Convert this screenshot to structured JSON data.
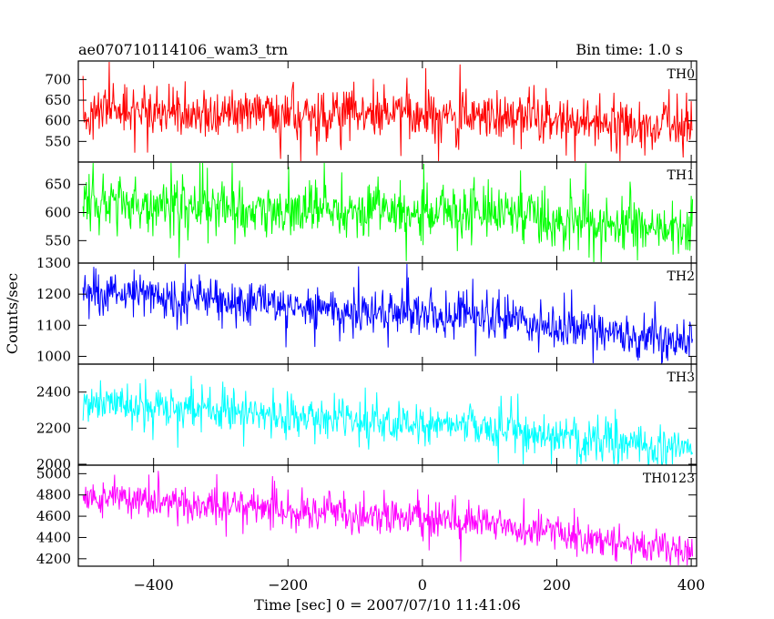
{
  "chart_data": {
    "type": "line",
    "title": "ae070710114106_wam3_trn",
    "bin_time_label": "Bin time: 1.0 s",
    "xlabel": "Time [sec] 0 = 2007/07/10 11:41:06",
    "ylabel": "Counts/sec",
    "xlim": [
      -512,
      408
    ],
    "x_ticks": [
      -400,
      -200,
      0,
      200,
      400
    ],
    "x_tick_labels": [
      "−400",
      "−200",
      "0",
      "200",
      "400"
    ],
    "x_start": -505,
    "x_end": 402,
    "bin": 1.0,
    "panels": [
      {
        "name": "TH0",
        "color": "#ff0000",
        "ylim": [
          500,
          745
        ],
        "y_ticks": [
          550,
          600,
          650,
          700
        ],
        "trend_x": [
          -505,
          -400,
          -200,
          0,
          150,
          250,
          402
        ],
        "trend_y": [
          625,
          620,
          615,
          615,
          605,
          595,
          580
        ],
        "noise_sd": 27,
        "spike_prob": 0.06
      },
      {
        "name": "TH1",
        "color": "#00ff00",
        "ylim": [
          510,
          690
        ],
        "y_ticks": [
          550,
          600,
          650
        ],
        "trend_x": [
          -505,
          -400,
          -200,
          0,
          150,
          250,
          402
        ],
        "trend_y": [
          618,
          612,
          606,
          602,
          594,
          585,
          568
        ],
        "noise_sd": 23,
        "spike_prob": 0.06
      },
      {
        "name": "TH2",
        "color": "#0000ff",
        "ylim": [
          975,
          1300
        ],
        "y_ticks": [
          1000,
          1100,
          1200,
          1300
        ],
        "trend_x": [
          -505,
          -400,
          -200,
          0,
          150,
          250,
          402
        ],
        "trend_y": [
          1205,
          1195,
          1165,
          1140,
          1110,
          1080,
          1048
        ],
        "noise_sd": 34,
        "spike_prob": 0.05
      },
      {
        "name": "TH3",
        "color": "#00ffff",
        "ylim": [
          1995,
          2555
        ],
        "y_ticks": [
          2000,
          2200,
          2400
        ],
        "trend_x": [
          -505,
          -400,
          -200,
          0,
          150,
          250,
          402
        ],
        "trend_y": [
          2345,
          2325,
          2270,
          2220,
          2170,
          2130,
          2090
        ],
        "noise_sd": 55,
        "spike_prob": 0.05
      },
      {
        "name": "TH0123",
        "color": "#ff00ff",
        "ylim": [
          4130,
          5080
        ],
        "y_ticks": [
          4200,
          4400,
          4600,
          4800,
          5000
        ],
        "trend_x": [
          -505,
          -400,
          -200,
          0,
          150,
          250,
          402
        ],
        "trend_y": [
          4790,
          4745,
          4650,
          4590,
          4490,
          4390,
          4270
        ],
        "noise_sd": 80,
        "spike_prob": 0.05
      }
    ]
  }
}
